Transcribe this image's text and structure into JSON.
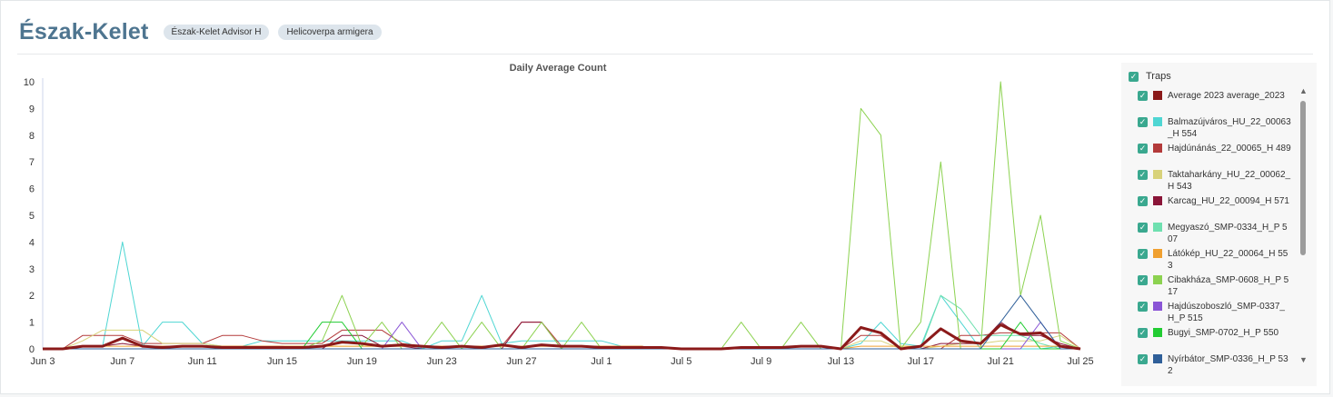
{
  "header": {
    "title": "Észak-Kelet",
    "tags": [
      "Észak-Kelet Advisor H",
      "Helicoverpa armigera"
    ]
  },
  "legend": {
    "header_label": "Traps",
    "items": [
      {
        "label": "Average 2023 average_2023",
        "color": "#8b1a1a"
      },
      {
        "label": "Balmazújváros_HU_22_00063_H 554",
        "color": "#4fd6d3"
      },
      {
        "label": "Hajdúnánás_22_00065_H 489",
        "color": "#b33a3a"
      },
      {
        "label": "Taktaharkány_HU_22_00062_H 543",
        "color": "#d8d27a"
      },
      {
        "label": "Karcag_HU_22_00094_H 571",
        "color": "#8a1538"
      },
      {
        "label": "Megyaszó_SMP-0334_H_P 507",
        "color": "#6fe0b0"
      },
      {
        "label": "Látókép_HU_22_00064_H 553",
        "color": "#f0a030"
      },
      {
        "label": "Cibakháza_SMP-0608_H_P 517",
        "color": "#8cd250"
      },
      {
        "label": "Hajdúszoboszló_SMP-0337_H_P 515",
        "color": "#8a55d6"
      },
      {
        "label": "Bugyi_SMP-0702_H_P 550",
        "color": "#22cc33"
      },
      {
        "label": "Nyírbátor_SMP-0336_H_P 532",
        "color": "#2f5f99"
      }
    ]
  },
  "chart_data": {
    "type": "line",
    "title": "Daily Average Count",
    "xlabel": "",
    "ylabel": "",
    "ylim": [
      0,
      10
    ],
    "yticks": [
      "0",
      "1",
      "2",
      "3",
      "4",
      "5",
      "6",
      "7",
      "8",
      "9",
      "10"
    ],
    "x": [
      "Jun 3",
      "Jun 4",
      "Jun 5",
      "Jun 6",
      "Jun 7",
      "Jun 8",
      "Jun 9",
      "Jun 10",
      "Jun 11",
      "Jun 12",
      "Jun 13",
      "Jun 14",
      "Jun 15",
      "Jun 16",
      "Jun 17",
      "Jun 18",
      "Jun 19",
      "Jun 20",
      "Jun 21",
      "Jun 22",
      "Jun 23",
      "Jun 24",
      "Jun 25",
      "Jun 26",
      "Jun 27",
      "Jun 28",
      "Jun 29",
      "Jun 30",
      "Jul 1",
      "Jul 2",
      "Jul 3",
      "Jul 4",
      "Jul 5",
      "Jul 6",
      "Jul 7",
      "Jul 8",
      "Jul 9",
      "Jul 10",
      "Jul 11",
      "Jul 12",
      "Jul 13",
      "Jul 14",
      "Jul 15",
      "Jul 16",
      "Jul 17",
      "Jul 18",
      "Jul 19",
      "Jul 20",
      "Jul 21",
      "Jul 22",
      "Jul 23",
      "Jul 24",
      "Jul 25"
    ],
    "xticks": [
      "Jun 3",
      "Jun 7",
      "Jun 11",
      "Jun 15",
      "Jun 19",
      "Jun 23",
      "Jun 27",
      "Jul 1",
      "Jul 5",
      "Jul 9",
      "Jul 13",
      "Jul 17",
      "Jul 21",
      "Jul 25"
    ],
    "series": [
      {
        "name": "Balmazújváros_HU_22_00063_H 554",
        "color": "#4fd6d3",
        "width": 1,
        "values": [
          0,
          0,
          0.1,
          0.1,
          4,
          0.1,
          1,
          1,
          0.2,
          0.1,
          0.1,
          0.3,
          0.3,
          0.3,
          0.3,
          0.3,
          0.3,
          0.3,
          0.3,
          0,
          0.3,
          0.3,
          2,
          0.2,
          0.3,
          0.3,
          0.3,
          0.3,
          0.3,
          0.1,
          0.1,
          0,
          0,
          0,
          0,
          0,
          0,
          0,
          0,
          0,
          0,
          0.2,
          1,
          0.2,
          0.1,
          2,
          1,
          0,
          0,
          0,
          0,
          0.1,
          0
        ]
      },
      {
        "name": "Hajdúnánás_22_00065_H 489",
        "color": "#b33a3a",
        "width": 1,
        "values": [
          0,
          0,
          0.5,
          0.5,
          0.5,
          0.2,
          0.2,
          0.2,
          0.2,
          0.5,
          0.5,
          0.3,
          0.2,
          0.2,
          0.2,
          0.7,
          0.7,
          0.7,
          0.2,
          0.1,
          0.1,
          0.1,
          0.1,
          0.1,
          1,
          1,
          0.1,
          0.1,
          0.1,
          0.1,
          0.1,
          0,
          0,
          0,
          0,
          0,
          0,
          0,
          0,
          0,
          0,
          0.5,
          0.5,
          0,
          0,
          0,
          0.5,
          0.5,
          0.6,
          0.6,
          0.6,
          0.6,
          0
        ]
      },
      {
        "name": "Taktaharkány_HU_22_00062_H 543",
        "color": "#d8d27a",
        "width": 1,
        "values": [
          0,
          0,
          0.3,
          0.7,
          0.7,
          0.7,
          0.2,
          0.2,
          0.2,
          0.1,
          0.1,
          0.1,
          0.1,
          0.1,
          0.1,
          0.1,
          0.1,
          0.1,
          0.1,
          0.1,
          0.1,
          0.1,
          0.1,
          0.1,
          0.1,
          0.1,
          0.1,
          0.1,
          0.1,
          0,
          0,
          0,
          0,
          0,
          0,
          0,
          0,
          0,
          0,
          0,
          0,
          0.3,
          0.3,
          0,
          0,
          0.1,
          0.2,
          0.2,
          0.3,
          0.3,
          0.3,
          0.5,
          0
        ]
      },
      {
        "name": "Karcag_HU_22_00094_H 571",
        "color": "#8a1538",
        "width": 1,
        "values": [
          0,
          0,
          0.1,
          0.1,
          0.2,
          0.1,
          0.1,
          0.1,
          0.1,
          0.1,
          0.1,
          0.1,
          0.1,
          0,
          0,
          0.5,
          0.5,
          0.1,
          0.1,
          0,
          0,
          0,
          0,
          0,
          1,
          1,
          0,
          0,
          0,
          0,
          0,
          0,
          0,
          0,
          0,
          0,
          0,
          0,
          0,
          0,
          0,
          0,
          0,
          0,
          0,
          0.2,
          0.2,
          0.2,
          1,
          0.5,
          0.5,
          0.2,
          0
        ]
      },
      {
        "name": "Megyaszó_SMP-0334_H_P 507",
        "color": "#6fe0b0",
        "width": 1,
        "values": [
          0,
          0,
          0,
          0,
          0,
          0,
          0,
          0,
          0,
          0,
          0,
          0,
          0,
          0,
          0,
          0,
          0,
          0,
          0,
          0,
          0,
          0,
          0,
          0,
          0,
          0,
          0,
          0,
          0,
          0,
          0,
          0,
          0,
          0,
          0,
          0,
          0,
          0,
          0,
          0,
          0,
          0,
          0,
          0,
          0,
          2,
          1.5,
          0.5,
          0.5,
          0.5,
          0.2,
          0,
          0
        ]
      },
      {
        "name": "Látókép_HU_22_00064_H 553",
        "color": "#f0a030",
        "width": 1,
        "values": [
          0,
          0,
          0.1,
          0.1,
          0.1,
          0.1,
          0.1,
          0.1,
          0.1,
          0.1,
          0.1,
          0.1,
          0.1,
          0.1,
          0.1,
          0.1,
          0.1,
          0.1,
          0.1,
          0.1,
          0.1,
          0.1,
          0.1,
          0.1,
          0.1,
          0.1,
          0.1,
          0.1,
          0.1,
          0.1,
          0.1,
          0,
          0,
          0,
          0,
          0,
          0,
          0,
          0,
          0,
          0,
          0.1,
          0.1,
          0.1,
          0.1,
          0.1,
          0.1,
          0.1,
          0.1,
          0.1,
          0.1,
          0.1,
          0
        ]
      },
      {
        "name": "Cibakháza_SMP-0608_H_P 517",
        "color": "#8cd250",
        "width": 1,
        "values": [
          0,
          0,
          0,
          0,
          0,
          0,
          0,
          0,
          0,
          0,
          0,
          0,
          0,
          0,
          0.3,
          2,
          0.1,
          1,
          0,
          0,
          1,
          0,
          1,
          0,
          0,
          1,
          0,
          1,
          0,
          0,
          0,
          0,
          0,
          0,
          0,
          1,
          0,
          0,
          1,
          0,
          0,
          9,
          8,
          0,
          1,
          7,
          0,
          0,
          10,
          2,
          5,
          0.3,
          0
        ]
      },
      {
        "name": "Hajdúszoboszló_SMP-0337_H_P 515",
        "color": "#8a55d6",
        "width": 1,
        "values": [
          0,
          0,
          0,
          0,
          0,
          0,
          0,
          0,
          0,
          0,
          0,
          0,
          0,
          0,
          0,
          0,
          0,
          0,
          1,
          0,
          0,
          0,
          0,
          0,
          0,
          0,
          0,
          0,
          0,
          0,
          0,
          0,
          0,
          0,
          0,
          0,
          0,
          0,
          0,
          0,
          0,
          0,
          0,
          0,
          0,
          0,
          0,
          0,
          0,
          0,
          1,
          0,
          0
        ]
      },
      {
        "name": "Bugyi_SMP-0702_H_P 550",
        "color": "#22cc33",
        "width": 1,
        "values": [
          0,
          0,
          0,
          0,
          0,
          0,
          0,
          0,
          0,
          0,
          0,
          0,
          0,
          0,
          1,
          1,
          0,
          0,
          0,
          0,
          0,
          0,
          0,
          0,
          0,
          0,
          0,
          0,
          0,
          0,
          0,
          0,
          0,
          0,
          0,
          0,
          0,
          0,
          0,
          0,
          0,
          0,
          0,
          0,
          0,
          0,
          0,
          0,
          0,
          1,
          0,
          0,
          0
        ]
      },
      {
        "name": "Nyírbátor_SMP-0336_H_P 532",
        "color": "#2f5f99",
        "width": 1,
        "values": [
          0,
          0,
          0,
          0,
          0,
          0,
          0,
          0,
          0,
          0,
          0,
          0,
          0,
          0,
          0,
          0,
          0,
          0,
          0,
          0,
          0,
          0,
          0,
          0,
          0,
          0,
          0,
          0,
          0,
          0,
          0,
          0,
          0,
          0,
          0,
          0,
          0,
          0,
          0,
          0,
          0,
          0,
          0,
          0,
          0,
          0,
          0,
          0,
          1,
          2,
          1,
          0,
          0
        ]
      },
      {
        "name": "Average 2023 average_2023",
        "color": "#8b1a1a",
        "width": 3,
        "values": [
          0,
          0,
          0.1,
          0.1,
          0.4,
          0.1,
          0.05,
          0.1,
          0.1,
          0.05,
          0.05,
          0.05,
          0.05,
          0.05,
          0.1,
          0.25,
          0.2,
          0.1,
          0.15,
          0.1,
          0.05,
          0.1,
          0.05,
          0.15,
          0.05,
          0.15,
          0.1,
          0.1,
          0.05,
          0.05,
          0.05,
          0.05,
          0,
          0,
          0,
          0.05,
          0.05,
          0.05,
          0.1,
          0.1,
          0,
          0.8,
          0.6,
          0,
          0.1,
          0.75,
          0.3,
          0.2,
          0.9,
          0.55,
          0.6,
          0.1,
          0
        ]
      }
    ]
  }
}
